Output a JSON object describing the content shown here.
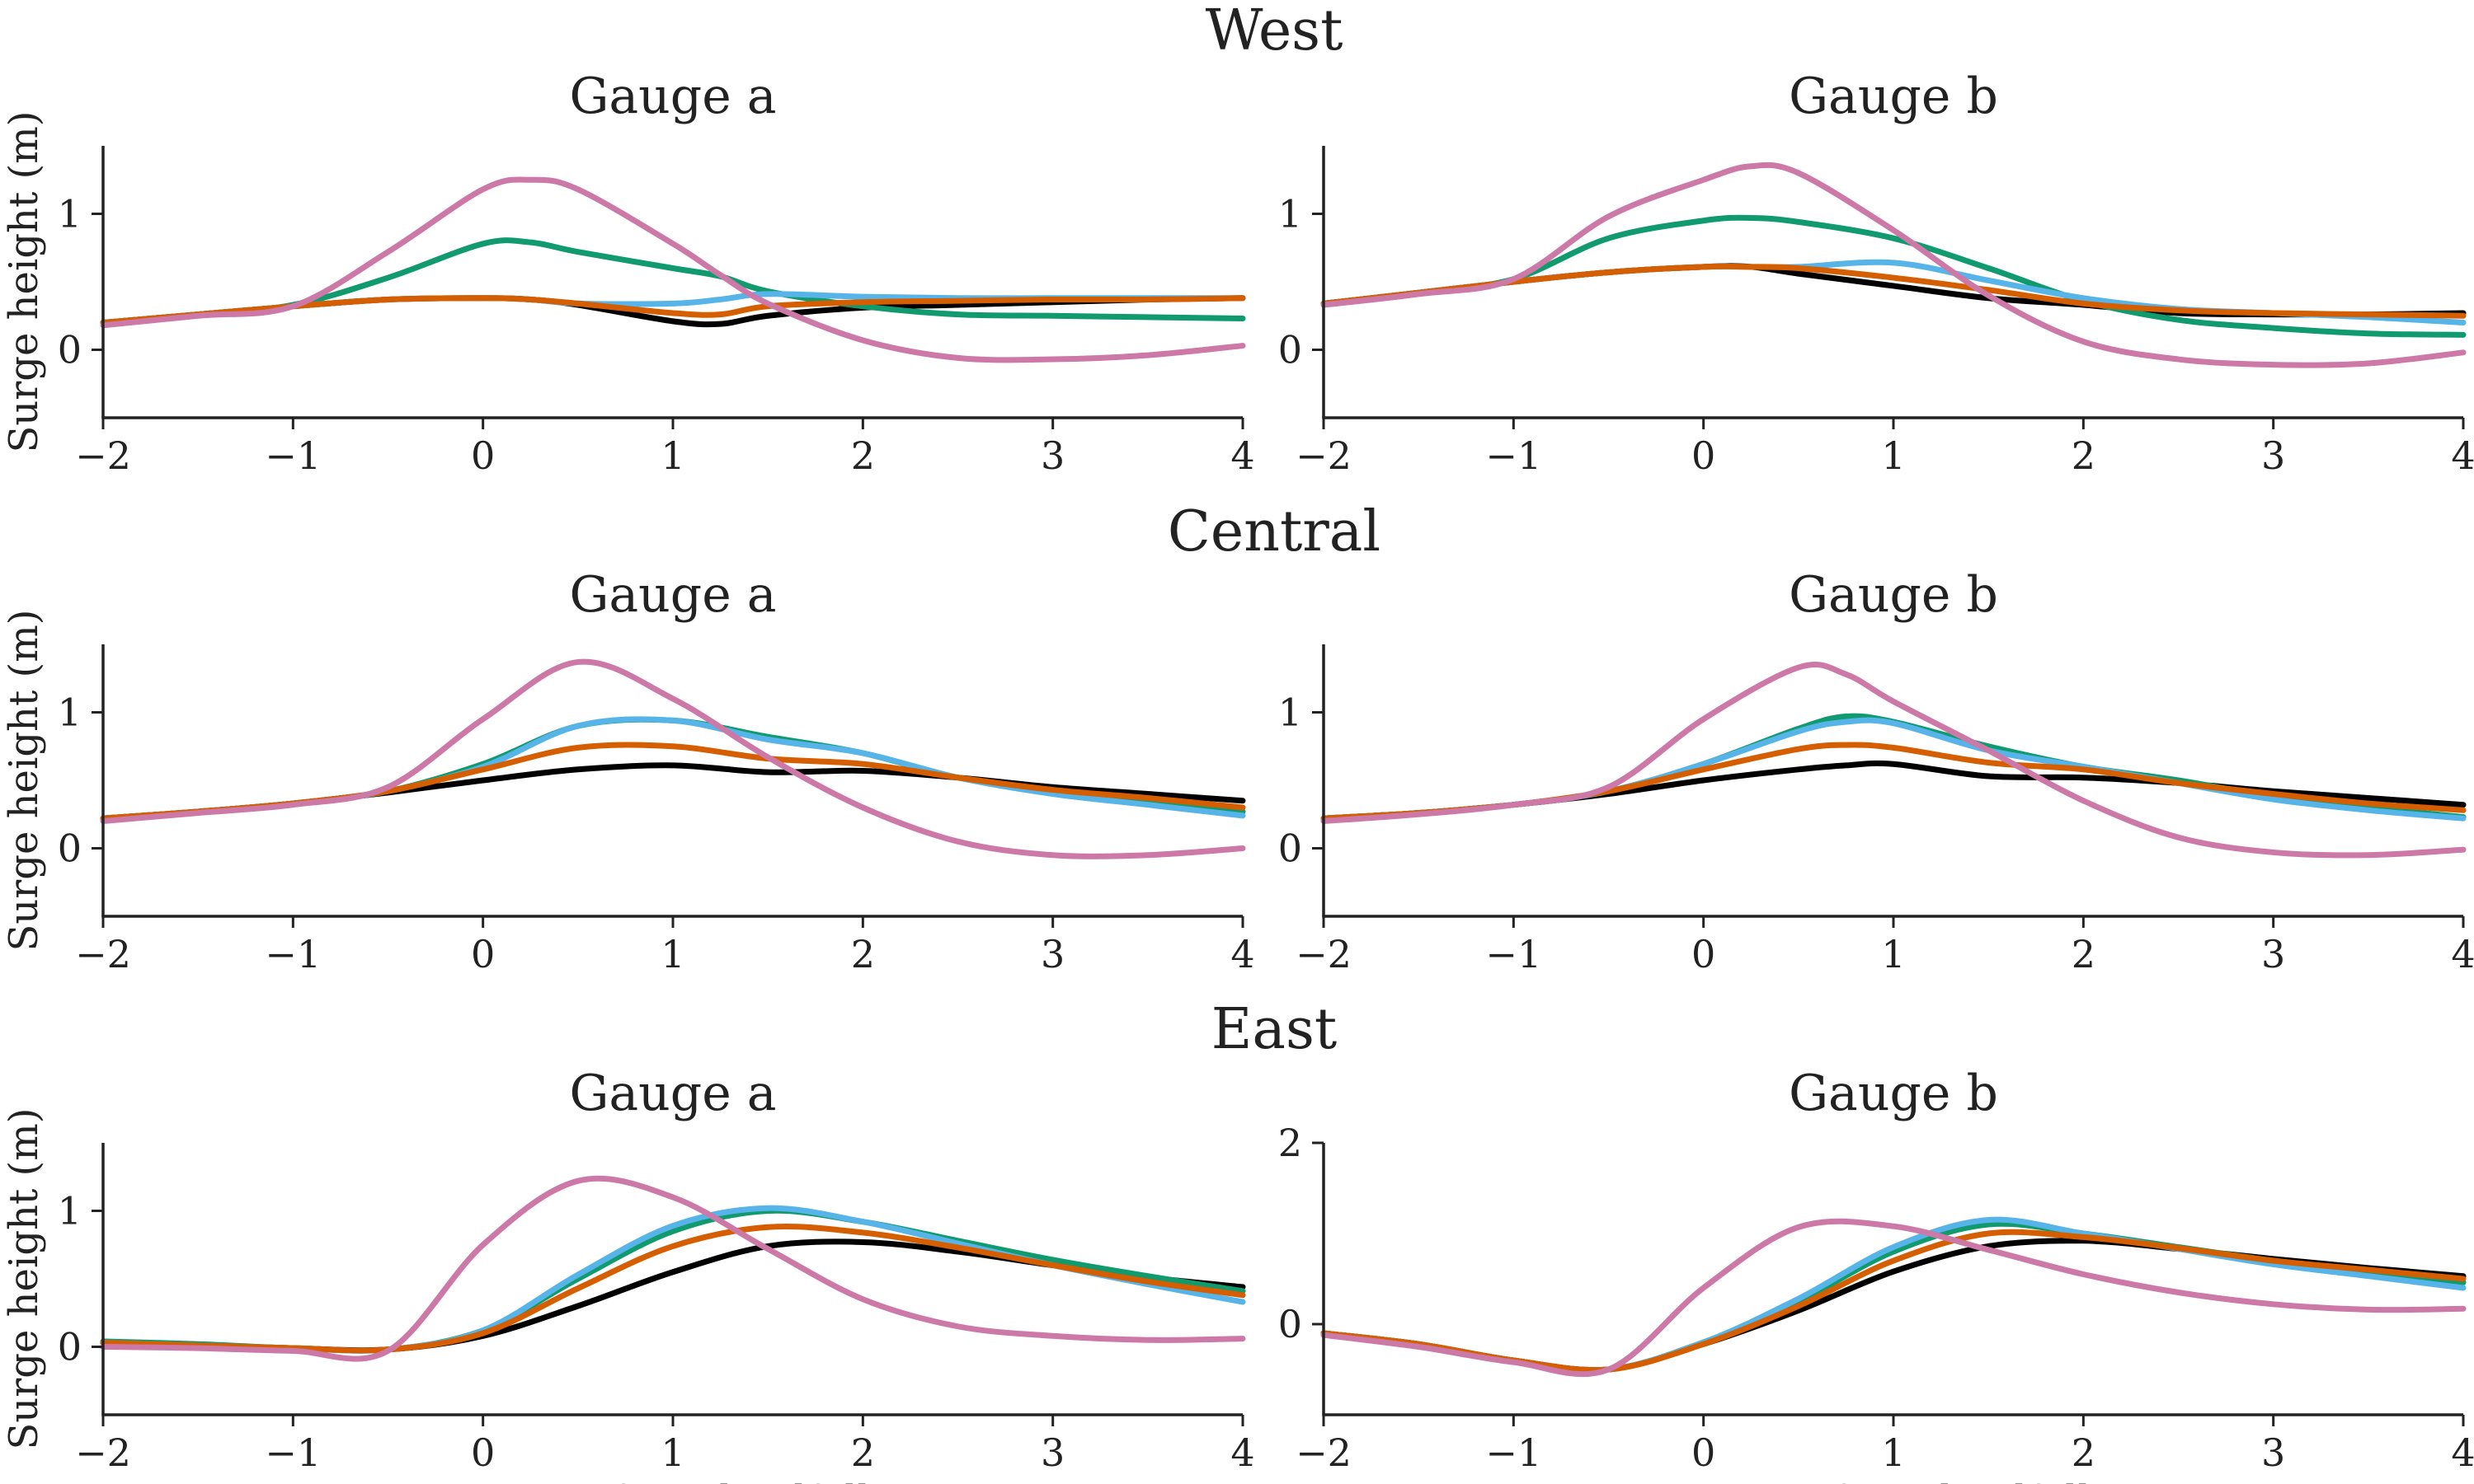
{
  "colors": {
    "series_black": "#000000",
    "series_green": "#109a6e",
    "series_sky": "#56b4e9",
    "series_orange": "#d55e00",
    "series_pink": "#cc79a7",
    "axis": "#222222"
  },
  "figure": {
    "row_titles": [
      "West",
      "Central",
      "East"
    ],
    "xlabel": "Hours from landfall",
    "ylabel": "Surge height (m)",
    "xticks": [
      "−2",
      "−1",
      "0",
      "1",
      "2",
      "3",
      "4"
    ]
  },
  "chart_data": [
    {
      "type": "line",
      "row_title": "West",
      "title": "Gauge a",
      "xlabel": "",
      "ylabel": "Surge height (m)",
      "xlim": [
        -2,
        4
      ],
      "ylim": [
        -0.5,
        1.5
      ],
      "yticks": [
        0,
        1
      ],
      "ytick_labels": [
        "0",
        "1"
      ],
      "grid": false,
      "x": [
        -2,
        -1.5,
        -1,
        -0.5,
        0,
        0.25,
        0.5,
        1,
        1.25,
        1.5,
        2,
        2.5,
        3,
        3.5,
        4
      ],
      "series": [
        {
          "color": "#000000",
          "values": [
            0.2,
            0.26,
            0.32,
            0.37,
            0.38,
            0.37,
            0.33,
            0.21,
            0.19,
            0.25,
            0.31,
            0.33,
            0.35,
            0.37,
            0.38
          ]
        },
        {
          "color": "#109a6e",
          "values": [
            0.2,
            0.26,
            0.33,
            0.53,
            0.78,
            0.79,
            0.72,
            0.6,
            0.54,
            0.43,
            0.32,
            0.26,
            0.25,
            0.24,
            0.23
          ]
        },
        {
          "color": "#56b4e9",
          "values": [
            0.2,
            0.26,
            0.32,
            0.37,
            0.38,
            0.37,
            0.34,
            0.34,
            0.37,
            0.41,
            0.39,
            0.38,
            0.38,
            0.38,
            0.38
          ]
        },
        {
          "color": "#d55e00",
          "values": [
            0.2,
            0.26,
            0.32,
            0.37,
            0.38,
            0.37,
            0.34,
            0.27,
            0.26,
            0.32,
            0.35,
            0.36,
            0.37,
            0.37,
            0.38
          ]
        },
        {
          "color": "#cc79a7",
          "values": [
            0.18,
            0.25,
            0.32,
            0.72,
            1.18,
            1.25,
            1.18,
            0.78,
            0.55,
            0.34,
            0.07,
            -0.06,
            -0.07,
            -0.04,
            0.03
          ]
        }
      ]
    },
    {
      "type": "line",
      "row_title": "West",
      "title": "Gauge b",
      "xlabel": "",
      "ylabel": "",
      "xlim": [
        -2,
        4
      ],
      "ylim": [
        -0.5,
        1.5
      ],
      "yticks": [
        0,
        1
      ],
      "ytick_labels": [
        "0",
        "1"
      ],
      "grid": false,
      "x": [
        -2,
        -1.5,
        -1,
        -0.5,
        0,
        0.25,
        0.5,
        1,
        1.5,
        2,
        2.5,
        3,
        3.5,
        4
      ],
      "series": [
        {
          "color": "#000000",
          "values": [
            0.34,
            0.42,
            0.5,
            0.57,
            0.61,
            0.61,
            0.56,
            0.47,
            0.38,
            0.33,
            0.27,
            0.26,
            0.26,
            0.27
          ]
        },
        {
          "color": "#109a6e",
          "values": [
            0.34,
            0.42,
            0.52,
            0.82,
            0.95,
            0.97,
            0.94,
            0.82,
            0.6,
            0.36,
            0.22,
            0.16,
            0.12,
            0.11
          ]
        },
        {
          "color": "#56b4e9",
          "values": [
            0.34,
            0.42,
            0.5,
            0.57,
            0.61,
            0.61,
            0.61,
            0.64,
            0.51,
            0.38,
            0.3,
            0.27,
            0.24,
            0.2
          ]
        },
        {
          "color": "#d55e00",
          "values": [
            0.34,
            0.42,
            0.5,
            0.57,
            0.61,
            0.61,
            0.6,
            0.53,
            0.44,
            0.34,
            0.29,
            0.27,
            0.26,
            0.25
          ]
        },
        {
          "color": "#cc79a7",
          "values": [
            0.33,
            0.41,
            0.52,
            0.98,
            1.25,
            1.35,
            1.3,
            0.88,
            0.4,
            0.06,
            -0.07,
            -0.11,
            -0.1,
            -0.02
          ]
        }
      ]
    },
    {
      "type": "line",
      "row_title": "Central",
      "title": "Gauge a",
      "xlabel": "",
      "ylabel": "Surge height (m)",
      "xlim": [
        -2,
        4
      ],
      "ylim": [
        -0.5,
        1.5
      ],
      "yticks": [
        0,
        1
      ],
      "ytick_labels": [
        "0",
        "1"
      ],
      "grid": false,
      "x": [
        -2,
        -1.5,
        -1,
        -0.5,
        0,
        0.5,
        1,
        1.5,
        2,
        2.5,
        3,
        3.5,
        4
      ],
      "series": [
        {
          "color": "#000000",
          "values": [
            0.22,
            0.27,
            0.33,
            0.41,
            0.5,
            0.58,
            0.61,
            0.56,
            0.57,
            0.52,
            0.45,
            0.4,
            0.35
          ]
        },
        {
          "color": "#109a6e",
          "values": [
            0.22,
            0.27,
            0.33,
            0.42,
            0.62,
            0.9,
            0.94,
            0.82,
            0.7,
            0.52,
            0.42,
            0.35,
            0.27
          ]
        },
        {
          "color": "#56b4e9",
          "values": [
            0.22,
            0.27,
            0.33,
            0.42,
            0.6,
            0.9,
            0.94,
            0.8,
            0.7,
            0.52,
            0.4,
            0.32,
            0.24
          ]
        },
        {
          "color": "#d55e00",
          "values": [
            0.22,
            0.27,
            0.33,
            0.42,
            0.58,
            0.74,
            0.75,
            0.66,
            0.62,
            0.52,
            0.43,
            0.37,
            0.3
          ]
        },
        {
          "color": "#cc79a7",
          "values": [
            0.2,
            0.26,
            0.32,
            0.45,
            0.95,
            1.37,
            1.1,
            0.67,
            0.3,
            0.05,
            -0.05,
            -0.05,
            0.0
          ]
        }
      ]
    },
    {
      "type": "line",
      "row_title": "Central",
      "title": "Gauge b",
      "xlabel": "",
      "ylabel": "",
      "xlim": [
        -2,
        4
      ],
      "ylim": [
        -0.5,
        1.5
      ],
      "yticks": [
        0,
        1
      ],
      "ytick_labels": [
        "0",
        "1"
      ],
      "grid": false,
      "x": [
        -2,
        -1.5,
        -1,
        -0.5,
        0,
        0.5,
        0.75,
        1,
        1.5,
        2,
        2.5,
        3,
        3.5,
        4
      ],
      "series": [
        {
          "color": "#000000",
          "values": [
            0.22,
            0.26,
            0.32,
            0.4,
            0.5,
            0.58,
            0.61,
            0.62,
            0.53,
            0.52,
            0.48,
            0.42,
            0.37,
            0.32
          ]
        },
        {
          "color": "#109a6e",
          "values": [
            0.22,
            0.26,
            0.32,
            0.42,
            0.62,
            0.88,
            0.97,
            0.93,
            0.75,
            0.6,
            0.5,
            0.38,
            0.3,
            0.23
          ]
        },
        {
          "color": "#56b4e9",
          "values": [
            0.22,
            0.26,
            0.32,
            0.42,
            0.62,
            0.86,
            0.93,
            0.92,
            0.72,
            0.6,
            0.48,
            0.36,
            0.28,
            0.22
          ]
        },
        {
          "color": "#d55e00",
          "values": [
            0.22,
            0.26,
            0.32,
            0.42,
            0.58,
            0.73,
            0.76,
            0.74,
            0.63,
            0.58,
            0.48,
            0.4,
            0.33,
            0.28
          ]
        },
        {
          "color": "#cc79a7",
          "values": [
            0.2,
            0.25,
            0.32,
            0.45,
            0.95,
            1.33,
            1.28,
            1.08,
            0.72,
            0.35,
            0.08,
            -0.03,
            -0.05,
            -0.01
          ]
        }
      ]
    },
    {
      "type": "line",
      "row_title": "East",
      "title": "Gauge a",
      "xlabel": "Hours from landfall",
      "ylabel": "Surge height (m)",
      "xlim": [
        -2,
        4
      ],
      "ylim": [
        -0.5,
        1.5
      ],
      "yticks": [
        0,
        1
      ],
      "ytick_labels": [
        "0",
        "1"
      ],
      "grid": false,
      "x": [
        -2,
        -1.5,
        -1,
        -0.5,
        0,
        0.5,
        1,
        1.5,
        2,
        2.5,
        3,
        3.5,
        4
      ],
      "series": [
        {
          "color": "#000000",
          "values": [
            0.03,
            0.01,
            -0.01,
            -0.02,
            0.08,
            0.3,
            0.55,
            0.74,
            0.77,
            0.7,
            0.6,
            0.51,
            0.44
          ]
        },
        {
          "color": "#109a6e",
          "values": [
            0.04,
            0.02,
            -0.01,
            -0.02,
            0.12,
            0.5,
            0.85,
            1.0,
            0.92,
            0.78,
            0.64,
            0.52,
            0.41
          ]
        },
        {
          "color": "#56b4e9",
          "values": [
            0.03,
            0.01,
            -0.01,
            -0.02,
            0.12,
            0.53,
            0.89,
            1.02,
            0.92,
            0.76,
            0.6,
            0.46,
            0.33
          ]
        },
        {
          "color": "#d55e00",
          "values": [
            0.03,
            0.01,
            -0.01,
            -0.02,
            0.1,
            0.43,
            0.74,
            0.88,
            0.84,
            0.73,
            0.6,
            0.48,
            0.38
          ]
        },
        {
          "color": "#cc79a7",
          "values": [
            0.0,
            -0.01,
            -0.03,
            -0.03,
            0.75,
            1.22,
            1.1,
            0.72,
            0.35,
            0.15,
            0.08,
            0.05,
            0.06
          ]
        }
      ]
    },
    {
      "type": "line",
      "row_title": "East",
      "title": "Gauge b",
      "xlabel": "Hours from landfall",
      "ylabel": "",
      "xlim": [
        -2,
        4
      ],
      "ylim": [
        -1,
        2
      ],
      "yticks": [
        0,
        2
      ],
      "ytick_labels": [
        "0",
        "2"
      ],
      "grid": false,
      "x": [
        -2,
        -1.5,
        -1,
        -0.5,
        0,
        0.5,
        1,
        1.5,
        2,
        2.5,
        3,
        3.5,
        4
      ],
      "series": [
        {
          "color": "#000000",
          "values": [
            -0.1,
            -0.22,
            -0.4,
            -0.5,
            -0.22,
            0.15,
            0.58,
            0.86,
            0.92,
            0.83,
            0.72,
            0.62,
            0.53
          ]
        },
        {
          "color": "#109a6e",
          "values": [
            -0.1,
            -0.22,
            -0.4,
            -0.5,
            -0.2,
            0.25,
            0.8,
            1.1,
            1.0,
            0.85,
            0.7,
            0.58,
            0.46
          ]
        },
        {
          "color": "#56b4e9",
          "values": [
            -0.1,
            -0.22,
            -0.4,
            -0.5,
            -0.2,
            0.28,
            0.85,
            1.15,
            1.0,
            0.83,
            0.66,
            0.53,
            0.4
          ]
        },
        {
          "color": "#d55e00",
          "values": [
            -0.1,
            -0.22,
            -0.4,
            -0.5,
            -0.22,
            0.2,
            0.7,
            1.0,
            0.96,
            0.84,
            0.7,
            0.6,
            0.5
          ]
        },
        {
          "color": "#cc79a7",
          "values": [
            -0.12,
            -0.25,
            -0.42,
            -0.5,
            0.4,
            1.07,
            1.08,
            0.82,
            0.55,
            0.35,
            0.22,
            0.16,
            0.17
          ]
        }
      ]
    }
  ]
}
